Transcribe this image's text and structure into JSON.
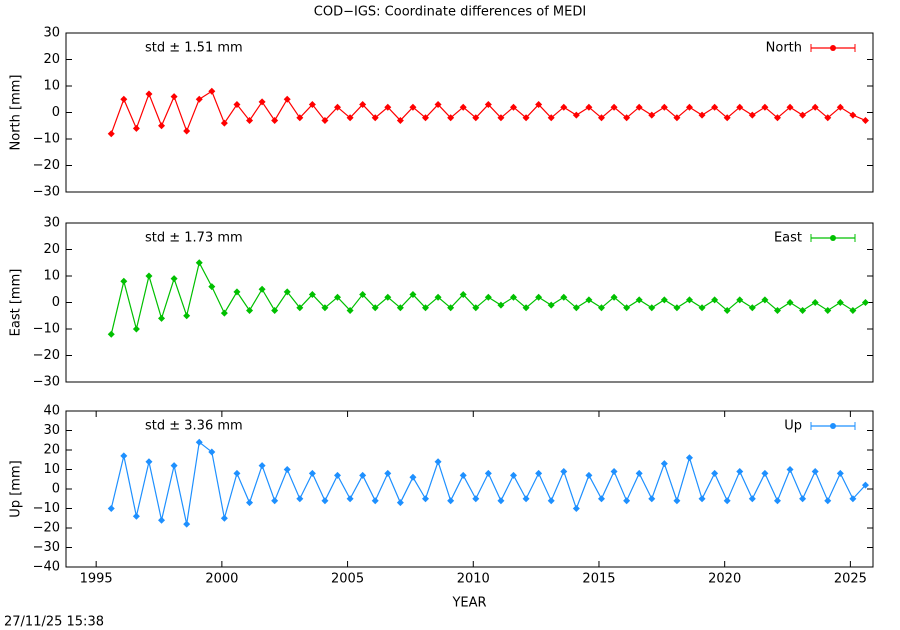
{
  "title": "COD−IGS: Coordinate differences of MEDI",
  "timestamp": "27/11/25 15:38",
  "chart_data": [
    {
      "type": "scatter",
      "ylabel": "North [mm]",
      "annotation": "std ± 1.51 mm",
      "x": [
        1995.6,
        1996.1,
        1996.6,
        1997.1,
        1997.6,
        1998.1,
        1998.6,
        1999.1,
        1999.6,
        2000.1,
        2000.6,
        2001.1,
        2001.6,
        2002.1,
        2002.6,
        2003.1,
        2003.6,
        2004.1,
        2004.6,
        2005.1,
        2005.6,
        2006.1,
        2006.6,
        2007.1,
        2007.6,
        2008.1,
        2008.6,
        2009.1,
        2009.6,
        2010.1,
        2010.6,
        2011.1,
        2011.6,
        2012.1,
        2012.6,
        2013.1,
        2013.6,
        2014.1,
        2014.6,
        2015.1,
        2015.6,
        2016.1,
        2016.6,
        2017.1,
        2017.6,
        2018.1,
        2018.6,
        2019.1,
        2019.6,
        2020.1,
        2020.6,
        2021.1,
        2021.6,
        2022.1,
        2022.6,
        2023.1,
        2023.6,
        2024.1,
        2024.6,
        2025.1,
        2025.6
      ],
      "series": [
        {
          "name": "North",
          "color": "#ff0000",
          "values": [
            -8,
            5,
            -6,
            7,
            -5,
            6,
            -7,
            5,
            8,
            -4,
            3,
            -3,
            4,
            -3,
            5,
            -2,
            3,
            -3,
            2,
            -2,
            3,
            -2,
            2,
            -3,
            2,
            -2,
            3,
            -2,
            2,
            -2,
            3,
            -2,
            2,
            -2,
            3,
            -2,
            2,
            -1,
            2,
            -2,
            2,
            -2,
            2,
            -1,
            2,
            -2,
            2,
            -1,
            2,
            -2,
            2,
            -1,
            2,
            -2,
            2,
            -1,
            2,
            -2,
            2,
            -1,
            -3
          ]
        }
      ],
      "xlim": [
        1993.8,
        2025.9
      ],
      "ylim": [
        -30,
        30
      ],
      "yticks": [
        {
          "value": -30,
          "label": "−30"
        },
        {
          "value": -20,
          "label": "−20"
        },
        {
          "value": -10,
          "label": "−10"
        },
        0,
        10,
        20,
        30
      ]
    },
    {
      "type": "scatter",
      "ylabel": "East [mm]",
      "annotation": "std ± 1.73 mm",
      "x": [
        1995.6,
        1996.1,
        1996.6,
        1997.1,
        1997.6,
        1998.1,
        1998.6,
        1999.1,
        1999.6,
        2000.1,
        2000.6,
        2001.1,
        2001.6,
        2002.1,
        2002.6,
        2003.1,
        2003.6,
        2004.1,
        2004.6,
        2005.1,
        2005.6,
        2006.1,
        2006.6,
        2007.1,
        2007.6,
        2008.1,
        2008.6,
        2009.1,
        2009.6,
        2010.1,
        2010.6,
        2011.1,
        2011.6,
        2012.1,
        2012.6,
        2013.1,
        2013.6,
        2014.1,
        2014.6,
        2015.1,
        2015.6,
        2016.1,
        2016.6,
        2017.1,
        2017.6,
        2018.1,
        2018.6,
        2019.1,
        2019.6,
        2020.1,
        2020.6,
        2021.1,
        2021.6,
        2022.1,
        2022.6,
        2023.1,
        2023.6,
        2024.1,
        2024.6,
        2025.1,
        2025.6
      ],
      "series": [
        {
          "name": "East",
          "color": "#00c000",
          "values": [
            -12,
            8,
            -10,
            10,
            -6,
            9,
            -5,
            15,
            6,
            -4,
            4,
            -3,
            5,
            -3,
            4,
            -2,
            3,
            -2,
            2,
            -3,
            3,
            -2,
            2,
            -2,
            3,
            -2,
            2,
            -2,
            3,
            -2,
            2,
            -1,
            2,
            -2,
            2,
            -1,
            2,
            -2,
            1,
            -2,
            2,
            -2,
            1,
            -2,
            1,
            -2,
            1,
            -2,
            1,
            -3,
            1,
            -2,
            1,
            -3,
            0,
            -3,
            0,
            -3,
            0,
            -3,
            0
          ]
        }
      ],
      "xlim": [
        1993.8,
        2025.9
      ],
      "ylim": [
        -30,
        30
      ],
      "yticks": [
        {
          "value": -30,
          "label": "−30"
        },
        {
          "value": -20,
          "label": "−20"
        },
        {
          "value": -10,
          "label": "−10"
        },
        0,
        10,
        20,
        30
      ]
    },
    {
      "type": "scatter",
      "ylabel": "Up [mm]",
      "annotation": "std ± 3.36 mm",
      "xlabel": "YEAR",
      "x": [
        1995.6,
        1996.1,
        1996.6,
        1997.1,
        1997.6,
        1998.1,
        1998.6,
        1999.1,
        1999.6,
        2000.1,
        2000.6,
        2001.1,
        2001.6,
        2002.1,
        2002.6,
        2003.1,
        2003.6,
        2004.1,
        2004.6,
        2005.1,
        2005.6,
        2006.1,
        2006.6,
        2007.1,
        2007.6,
        2008.1,
        2008.6,
        2009.1,
        2009.6,
        2010.1,
        2010.6,
        2011.1,
        2011.6,
        2012.1,
        2012.6,
        2013.1,
        2013.6,
        2014.1,
        2014.6,
        2015.1,
        2015.6,
        2016.1,
        2016.6,
        2017.1,
        2017.6,
        2018.1,
        2018.6,
        2019.1,
        2019.6,
        2020.1,
        2020.6,
        2021.1,
        2021.6,
        2022.1,
        2022.6,
        2023.1,
        2023.6,
        2024.1,
        2024.6,
        2025.1,
        2025.6
      ],
      "series": [
        {
          "name": "Up",
          "color": "#1e90ff",
          "values": [
            -10,
            17,
            -14,
            14,
            -16,
            12,
            -18,
            24,
            19,
            -15,
            8,
            -7,
            12,
            -6,
            10,
            -5,
            8,
            -6,
            7,
            -5,
            7,
            -6,
            8,
            -7,
            6,
            -5,
            14,
            -6,
            7,
            -5,
            8,
            -6,
            7,
            -5,
            8,
            -6,
            9,
            -10,
            7,
            -5,
            9,
            -6,
            8,
            -5,
            13,
            -6,
            16,
            -5,
            8,
            -6,
            9,
            -5,
            8,
            -6,
            10,
            -5,
            9,
            -6,
            8,
            -5,
            2
          ]
        }
      ],
      "xlim": [
        1993.8,
        2025.9
      ],
      "xticks": [
        1995,
        2000,
        2005,
        2010,
        2015,
        2020,
        2025
      ],
      "ylim": [
        -40,
        40
      ],
      "yticks": [
        {
          "value": -40,
          "label": "−40"
        },
        {
          "value": -30,
          "label": "−30"
        },
        {
          "value": -20,
          "label": "−20"
        },
        {
          "value": -10,
          "label": "−10"
        },
        0,
        10,
        20,
        30,
        40
      ]
    }
  ]
}
